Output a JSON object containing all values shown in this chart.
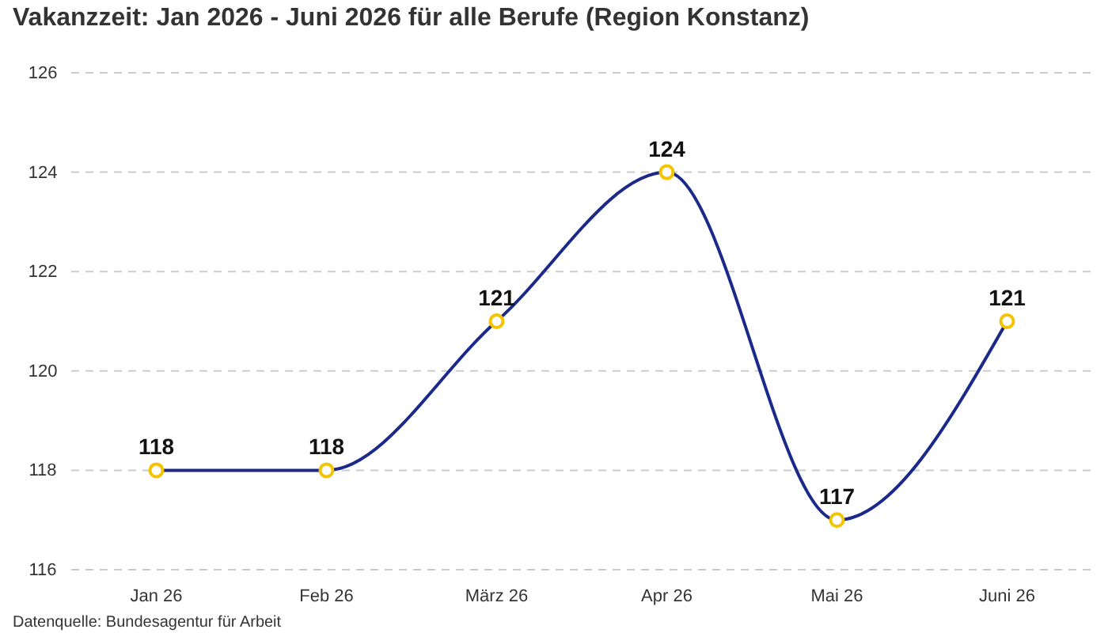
{
  "chart_data": {
    "type": "line",
    "title": "Vakanzzeit: Jan 2026 - Juni 2026 für alle Berufe (Region Konstanz)",
    "categories": [
      "Jan 26",
      "Feb 26",
      "März 26",
      "Apr 26",
      "Mai 26",
      "Juni 26"
    ],
    "series": [
      {
        "color": "#1b2a8a",
        "values": [
          118,
          118,
          121,
          124,
          117,
          121
        ]
      }
    ],
    "ylim": [
      116,
      126
    ],
    "yticks": [
      116,
      118,
      120,
      122,
      124,
      126
    ],
    "grid": "y",
    "marker": "circle",
    "data_labels": true,
    "line_style": "solid",
    "annotations": [
      "Datenquelle: Bundesagentur für Arbeit"
    ]
  }
}
